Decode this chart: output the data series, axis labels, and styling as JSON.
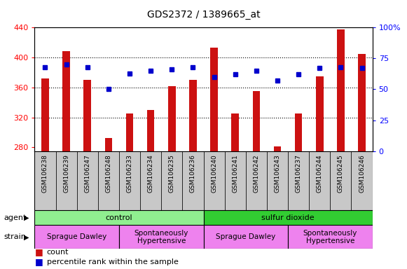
{
  "title": "GDS2372 / 1389665_at",
  "samples": [
    "GSM106238",
    "GSM106239",
    "GSM106247",
    "GSM106248",
    "GSM106233",
    "GSM106234",
    "GSM106235",
    "GSM106236",
    "GSM106240",
    "GSM106241",
    "GSM106242",
    "GSM106243",
    "GSM106237",
    "GSM106244",
    "GSM106245",
    "GSM106246"
  ],
  "counts": [
    372,
    408,
    370,
    293,
    325,
    330,
    362,
    370,
    413,
    325,
    355,
    281,
    325,
    375,
    437,
    405
  ],
  "percentiles": [
    68,
    70,
    68,
    50,
    63,
    65,
    66,
    68,
    60,
    62,
    65,
    57,
    62,
    67,
    68,
    67
  ],
  "ylim_left": [
    275,
    440
  ],
  "ylim_right": [
    0,
    100
  ],
  "yticks_left": [
    280,
    320,
    360,
    400,
    440
  ],
  "yticks_right": [
    0,
    25,
    50,
    75,
    100
  ],
  "bar_color": "#cc1111",
  "dot_color": "#0000cc",
  "agent_groups": [
    {
      "label": "control",
      "start": 0,
      "end": 8,
      "color": "#90ee90"
    },
    {
      "label": "sulfur dioxide",
      "start": 8,
      "end": 16,
      "color": "#32cd32"
    }
  ],
  "strain_groups": [
    {
      "label": "Sprague Dawley",
      "start": 0,
      "end": 4,
      "color": "#ee82ee"
    },
    {
      "label": "Spontaneously\nHypertensive",
      "start": 4,
      "end": 8,
      "color": "#ee82ee"
    },
    {
      "label": "Sprague Dawley",
      "start": 8,
      "end": 12,
      "color": "#ee82ee"
    },
    {
      "label": "Spontaneously\nHypertensive",
      "start": 12,
      "end": 16,
      "color": "#ee82ee"
    }
  ],
  "legend_count_label": "count",
  "legend_pct_label": "percentile rank within the sample",
  "agent_label": "agent",
  "strain_label": "strain",
  "tick_bg_color": "#c8c8c8",
  "bar_width": 0.35
}
